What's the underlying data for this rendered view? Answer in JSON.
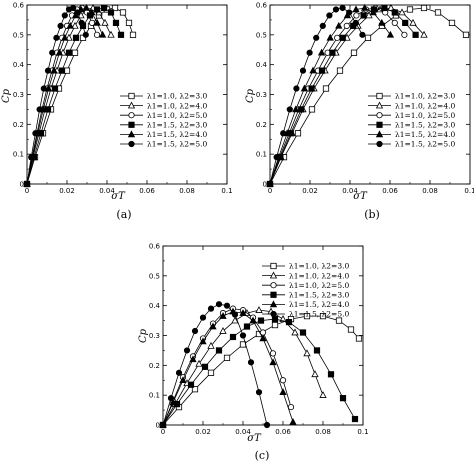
{
  "chart_data": [
    {
      "panel": "(a)",
      "type": "line",
      "xlabel": "σT",
      "ylabel": "Cp",
      "xlim": [
        0,
        0.1
      ],
      "ylim": [
        0,
        0.6
      ],
      "xticks": [
        "0",
        "0.02",
        "0.04",
        "0.06",
        "0.08",
        "0.1"
      ],
      "yticks": [
        "0",
        "0.1",
        "0.2",
        "0.3",
        "0.4",
        "0.5",
        "0.6"
      ],
      "legend_position": "lower-right",
      "series": [
        {
          "name": "λ1=1.0, λ2=3.0",
          "marker": "square-open",
          "x": [
            0,
            0.004,
            0.008,
            0.012,
            0.016,
            0.02,
            0.024,
            0.028,
            0.032,
            0.036,
            0.04,
            0.044,
            0.048,
            0.051,
            0.053
          ],
          "y": [
            0,
            0.09,
            0.17,
            0.25,
            0.32,
            0.38,
            0.44,
            0.49,
            0.53,
            0.565,
            0.585,
            0.59,
            0.575,
            0.54,
            0.5
          ]
        },
        {
          "name": "λ1=1.0, λ2=4.0",
          "marker": "triangle-open",
          "x": [
            0,
            0.003,
            0.006,
            0.009,
            0.012,
            0.015,
            0.018,
            0.021,
            0.024,
            0.027,
            0.03,
            0.033,
            0.036,
            0.039,
            0.042
          ],
          "y": [
            0,
            0.09,
            0.17,
            0.25,
            0.32,
            0.38,
            0.44,
            0.49,
            0.53,
            0.565,
            0.585,
            0.59,
            0.575,
            0.54,
            0.5
          ]
        },
        {
          "name": "λ1=1.0, λ2=5.0",
          "marker": "circle-open",
          "x": [
            0,
            0.0025,
            0.005,
            0.0075,
            0.01,
            0.0125,
            0.015,
            0.0175,
            0.02,
            0.0225,
            0.025,
            0.0275,
            0.03,
            0.0325,
            0.035
          ],
          "y": [
            0,
            0.09,
            0.17,
            0.25,
            0.32,
            0.38,
            0.44,
            0.49,
            0.53,
            0.565,
            0.585,
            0.59,
            0.575,
            0.54,
            0.5
          ]
        },
        {
          "name": "λ1=1.5, λ2=3.0",
          "marker": "square-filled",
          "x": [
            0,
            0.0035,
            0.007,
            0.0105,
            0.014,
            0.0175,
            0.021,
            0.0245,
            0.028,
            0.0315,
            0.035,
            0.0385,
            0.042,
            0.0445,
            0.047
          ],
          "y": [
            0,
            0.09,
            0.17,
            0.25,
            0.32,
            0.38,
            0.44,
            0.49,
            0.53,
            0.565,
            0.585,
            0.59,
            0.575,
            0.54,
            0.5
          ]
        },
        {
          "name": "λ1=1.5, λ2=4.0",
          "marker": "triangle-filled",
          "x": [
            0,
            0.0027,
            0.0054,
            0.0081,
            0.0108,
            0.0135,
            0.0162,
            0.0189,
            0.0216,
            0.0243,
            0.027,
            0.0297,
            0.0324,
            0.0351,
            0.0378
          ],
          "y": [
            0,
            0.09,
            0.17,
            0.25,
            0.32,
            0.38,
            0.44,
            0.49,
            0.53,
            0.565,
            0.585,
            0.59,
            0.575,
            0.54,
            0.5
          ]
        },
        {
          "name": "λ1=1.5, λ2=5.0",
          "marker": "circle-filled",
          "x": [
            0,
            0.0021,
            0.0042,
            0.0063,
            0.0084,
            0.0105,
            0.0126,
            0.0147,
            0.0168,
            0.0189,
            0.021,
            0.0231,
            0.0252,
            0.0273,
            0.0294
          ],
          "y": [
            0,
            0.09,
            0.17,
            0.25,
            0.32,
            0.38,
            0.44,
            0.49,
            0.53,
            0.565,
            0.585,
            0.59,
            0.575,
            0.54,
            0.5
          ]
        }
      ]
    },
    {
      "panel": "(b)",
      "type": "line",
      "xlabel": "σT",
      "ylabel": "Cp",
      "xlim": [
        0,
        0.1
      ],
      "ylim": [
        0,
        0.6
      ],
      "xticks": [
        "0",
        "0.02",
        "0.04",
        "0.06",
        "0.08",
        "0.1"
      ],
      "yticks": [
        "0",
        "0.1",
        "0.2",
        "0.3",
        "0.4",
        "0.5",
        "0.6"
      ],
      "legend_position": "lower-right",
      "series": [
        {
          "name": "λ1=1.0, λ2=3.0",
          "marker": "square-open",
          "x": [
            0,
            0.007,
            0.014,
            0.021,
            0.028,
            0.035,
            0.042,
            0.049,
            0.056,
            0.063,
            0.07,
            0.077,
            0.084,
            0.091,
            0.098
          ],
          "y": [
            0,
            0.09,
            0.17,
            0.25,
            0.32,
            0.38,
            0.44,
            0.49,
            0.53,
            0.565,
            0.585,
            0.59,
            0.575,
            0.54,
            0.5
          ]
        },
        {
          "name": "λ1=1.0, λ2=4.0",
          "marker": "triangle-open",
          "x": [
            0,
            0.0055,
            0.011,
            0.0165,
            0.022,
            0.0275,
            0.033,
            0.0385,
            0.044,
            0.0495,
            0.055,
            0.0605,
            0.066,
            0.0715,
            0.077
          ],
          "y": [
            0,
            0.09,
            0.17,
            0.25,
            0.32,
            0.38,
            0.44,
            0.49,
            0.53,
            0.565,
            0.585,
            0.59,
            0.575,
            0.54,
            0.5
          ]
        },
        {
          "name": "λ1=1.0, λ2=5.0",
          "marker": "circle-open",
          "x": [
            0,
            0.0048,
            0.0096,
            0.0144,
            0.0192,
            0.024,
            0.0288,
            0.0336,
            0.0384,
            0.0432,
            0.048,
            0.0528,
            0.0576,
            0.0624,
            0.0672
          ],
          "y": [
            0,
            0.09,
            0.17,
            0.25,
            0.32,
            0.38,
            0.44,
            0.49,
            0.53,
            0.565,
            0.585,
            0.59,
            0.575,
            0.54,
            0.5
          ]
        },
        {
          "name": "λ1=1.5, λ2=3.0",
          "marker": "square-filled",
          "x": [
            0,
            0.0052,
            0.0104,
            0.0156,
            0.0208,
            0.026,
            0.0312,
            0.0364,
            0.0416,
            0.0468,
            0.052,
            0.0572,
            0.0624,
            0.0676,
            0.0728
          ],
          "y": [
            0,
            0.09,
            0.17,
            0.25,
            0.32,
            0.38,
            0.44,
            0.49,
            0.53,
            0.565,
            0.585,
            0.59,
            0.575,
            0.54,
            0.5
          ]
        },
        {
          "name": "λ1=1.5, λ2=4.0",
          "marker": "triangle-filled",
          "x": [
            0,
            0.0043,
            0.0086,
            0.0129,
            0.0172,
            0.0215,
            0.0258,
            0.0301,
            0.0344,
            0.0387,
            0.043,
            0.0473,
            0.0516,
            0.0559,
            0.0602
          ],
          "y": [
            0,
            0.09,
            0.17,
            0.25,
            0.32,
            0.38,
            0.44,
            0.49,
            0.53,
            0.565,
            0.585,
            0.59,
            0.575,
            0.54,
            0.5
          ]
        },
        {
          "name": "λ1=1.5, λ2=5.0",
          "marker": "circle-filled",
          "x": [
            0,
            0.0033,
            0.0066,
            0.0099,
            0.0132,
            0.0165,
            0.0198,
            0.0231,
            0.0264,
            0.0297,
            0.033,
            0.0363,
            0.0396,
            0.0429,
            0.0462
          ],
          "y": [
            0,
            0.09,
            0.17,
            0.25,
            0.32,
            0.38,
            0.44,
            0.49,
            0.53,
            0.565,
            0.585,
            0.59,
            0.575,
            0.54,
            0.5
          ]
        }
      ]
    },
    {
      "panel": "(c)",
      "type": "line",
      "xlabel": "σT",
      "ylabel": "Cp",
      "xlim": [
        0,
        0.1
      ],
      "ylim": [
        0,
        0.6
      ],
      "xticks": [
        "0",
        "0.02",
        "0.04",
        "0.06",
        "0.08",
        "0.1"
      ],
      "yticks": [
        "0",
        "0.1",
        "0.2",
        "0.3",
        "0.4",
        "0.5",
        "0.6"
      ],
      "legend_position": "upper-right",
      "series": [
        {
          "name": "λ1=1.0, λ2=3.0",
          "marker": "square-open",
          "x": [
            0,
            0.008,
            0.016,
            0.024,
            0.032,
            0.04,
            0.048,
            0.056,
            0.064,
            0.072,
            0.08,
            0.088,
            0.094,
            0.098
          ],
          "y": [
            0,
            0.06,
            0.12,
            0.175,
            0.225,
            0.27,
            0.305,
            0.335,
            0.355,
            0.365,
            0.365,
            0.35,
            0.32,
            0.29
          ]
        },
        {
          "name": "λ1=1.0, λ2=4.0",
          "marker": "triangle-open",
          "x": [
            0,
            0.006,
            0.012,
            0.018,
            0.024,
            0.03,
            0.036,
            0.042,
            0.048,
            0.054,
            0.06,
            0.066,
            0.072,
            0.076,
            0.08
          ],
          "y": [
            0,
            0.07,
            0.14,
            0.205,
            0.265,
            0.315,
            0.35,
            0.375,
            0.385,
            0.38,
            0.355,
            0.31,
            0.24,
            0.17,
            0.1
          ]
        },
        {
          "name": "λ1=1.0, λ2=5.0",
          "marker": "circle-open",
          "x": [
            0,
            0.005,
            0.01,
            0.015,
            0.02,
            0.025,
            0.03,
            0.035,
            0.04,
            0.045,
            0.05,
            0.055,
            0.06,
            0.064
          ],
          "y": [
            0,
            0.08,
            0.16,
            0.23,
            0.29,
            0.34,
            0.375,
            0.39,
            0.385,
            0.36,
            0.31,
            0.24,
            0.15,
            0.06
          ]
        },
        {
          "name": "λ1=1.5, λ2=3.0",
          "marker": "square-filled",
          "x": [
            0,
            0.007,
            0.014,
            0.021,
            0.028,
            0.035,
            0.042,
            0.049,
            0.056,
            0.063,
            0.07,
            0.077,
            0.084,
            0.09,
            0.096
          ],
          "y": [
            0,
            0.07,
            0.135,
            0.195,
            0.25,
            0.295,
            0.33,
            0.35,
            0.355,
            0.345,
            0.31,
            0.25,
            0.17,
            0.09,
            0.02
          ]
        },
        {
          "name": "λ1=1.5, λ2=4.0",
          "marker": "triangle-filled",
          "x": [
            0,
            0.005,
            0.01,
            0.015,
            0.02,
            0.025,
            0.03,
            0.035,
            0.04,
            0.045,
            0.05,
            0.055,
            0.06,
            0.065
          ],
          "y": [
            0,
            0.075,
            0.15,
            0.22,
            0.28,
            0.33,
            0.365,
            0.38,
            0.375,
            0.35,
            0.29,
            0.21,
            0.11,
            0.01
          ]
        },
        {
          "name": "λ1=1.5, λ2=5.0",
          "marker": "circle-filled",
          "x": [
            0,
            0.004,
            0.008,
            0.012,
            0.016,
            0.02,
            0.024,
            0.028,
            0.032,
            0.036,
            0.04,
            0.044,
            0.048,
            0.052
          ],
          "y": [
            0,
            0.09,
            0.175,
            0.25,
            0.315,
            0.36,
            0.39,
            0.405,
            0.4,
            0.37,
            0.3,
            0.21,
            0.11,
            0.0
          ]
        }
      ]
    }
  ]
}
